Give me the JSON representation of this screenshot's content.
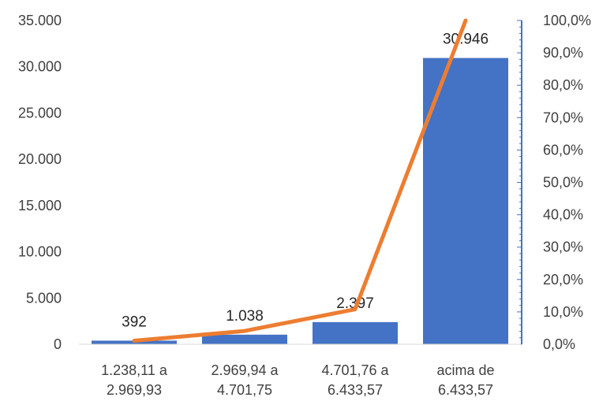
{
  "chart_data": {
    "type": "bar",
    "categories": [
      [
        "1.238,11 a",
        "2.969,93"
      ],
      [
        "2.969,94 a",
        "4.701,75"
      ],
      [
        "4.701,76 a",
        "6.433,57"
      ],
      [
        "acima de",
        "6.433,57"
      ]
    ],
    "series": [
      {
        "type": "bar",
        "axis": "left",
        "values": [
          392,
          1038,
          2397,
          30946
        ],
        "data_labels": [
          "392",
          "1.038",
          "2.397",
          "30.946"
        ],
        "color": "#4472C4"
      },
      {
        "type": "line",
        "axis": "right",
        "values": [
          1.1,
          4.1,
          10.8,
          100.0
        ],
        "color": "#ED7D31"
      }
    ],
    "ylim_left": [
      0,
      35000
    ],
    "yticks_left": [
      "0",
      "5.000",
      "10.000",
      "15.000",
      "20.000",
      "25.000",
      "30.000",
      "35.000"
    ],
    "ylim_right": [
      0,
      100
    ],
    "yticks_right": [
      "0,0%",
      "10,0%",
      "20,0%",
      "30,0%",
      "40,0%",
      "50,0%",
      "60,0%",
      "70,0%",
      "80,0%",
      "90,0%",
      "100,0%"
    ],
    "right_axis_color": "#4472C4",
    "grid": false,
    "legend": "none"
  }
}
